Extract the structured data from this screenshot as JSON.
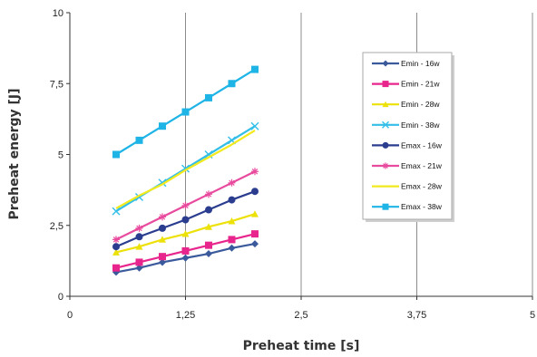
{
  "chart_data": {
    "type": "line",
    "xlabel": "Preheat time [s]",
    "ylabel": "Preheat energy [J]",
    "xlim": [
      0,
      5
    ],
    "ylim": [
      0,
      10
    ],
    "x_ticks": [
      "0",
      "1,25",
      "2,5",
      "3,75",
      "5"
    ],
    "y_ticks": [
      "0",
      "2,5",
      "5",
      "7,5",
      "10"
    ],
    "grid": "vertical gridlines at each x tick",
    "legend_position": "right",
    "series": [
      {
        "name": "Emin - 16w",
        "color": "#3A5A9C",
        "marker": "diamond",
        "x": [
          0.5,
          0.75,
          1.0,
          1.25,
          1.5,
          1.75,
          2.0
        ],
        "y": [
          0.85,
          1.0,
          1.2,
          1.35,
          1.5,
          1.7,
          1.85
        ]
      },
      {
        "name": "Emin - 21w",
        "color": "#E8258C",
        "marker": "square",
        "x": [
          0.5,
          0.75,
          1.0,
          1.25,
          1.5,
          1.75,
          2.0
        ],
        "y": [
          1.0,
          1.2,
          1.4,
          1.6,
          1.8,
          2.0,
          2.2
        ]
      },
      {
        "name": "Emin - 28w",
        "color": "#EDE10A",
        "marker": "triangle",
        "x": [
          0.5,
          0.75,
          1.0,
          1.25,
          1.5,
          1.75,
          2.0
        ],
        "y": [
          1.55,
          1.75,
          2.0,
          2.2,
          2.45,
          2.65,
          2.9
        ]
      },
      {
        "name": "Emin - 38w",
        "color": "#33BEE8",
        "marker": "x",
        "x": [
          0.5,
          0.75,
          1.0,
          1.25,
          1.5,
          1.75,
          2.0
        ],
        "y": [
          3.0,
          3.5,
          4.0,
          4.5,
          5.0,
          5.5,
          6.0
        ]
      },
      {
        "name": "Emax - 16w",
        "color": "#2A3D8F",
        "marker": "circle",
        "x": [
          0.5,
          0.75,
          1.0,
          1.25,
          1.5,
          1.75,
          2.0
        ],
        "y": [
          1.75,
          2.1,
          2.4,
          2.7,
          3.05,
          3.4,
          3.7
        ]
      },
      {
        "name": "Emax - 21w",
        "color": "#E84A9E",
        "marker": "star",
        "x": [
          0.5,
          0.75,
          1.0,
          1.25,
          1.5,
          1.75,
          2.0
        ],
        "y": [
          2.0,
          2.4,
          2.8,
          3.2,
          3.6,
          4.0,
          4.4
        ]
      },
      {
        "name": "Emax - 28w",
        "color": "#F2EA1E",
        "marker": "none",
        "x": [
          0.5,
          0.75,
          1.0,
          1.25,
          1.5,
          1.75,
          2.0
        ],
        "y": [
          3.1,
          3.55,
          3.95,
          4.45,
          4.9,
          5.35,
          5.85
        ]
      },
      {
        "name": "Emax - 38w",
        "color": "#1FB4E6",
        "marker": "square",
        "x": [
          0.5,
          0.75,
          1.0,
          1.25,
          1.5,
          1.75,
          2.0
        ],
        "y": [
          5.0,
          5.5,
          6.0,
          6.5,
          7.0,
          7.5,
          8.0
        ]
      }
    ]
  }
}
